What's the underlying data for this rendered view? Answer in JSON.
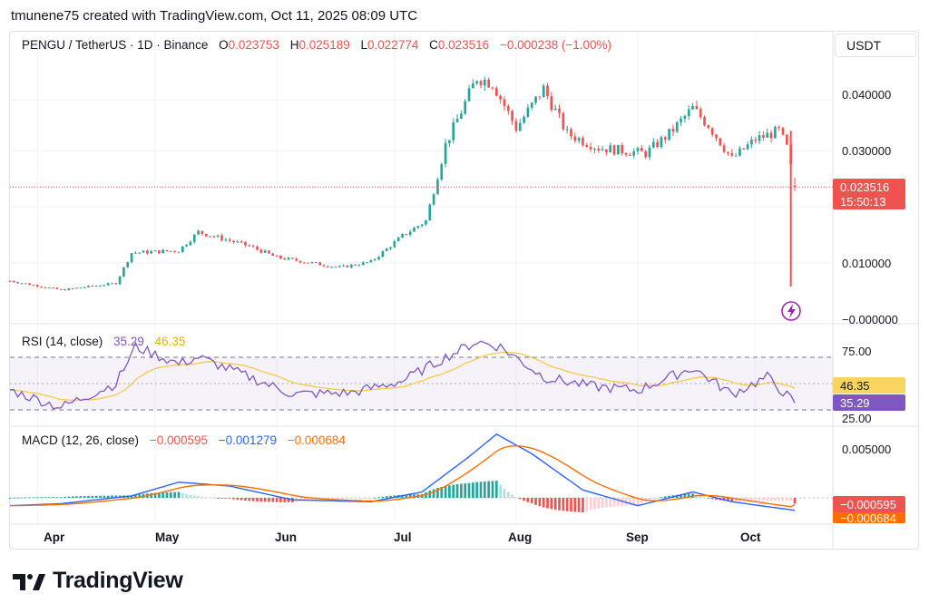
{
  "header": {
    "credit": "tmunene75 created with TradingView.com, Oct 11, 2025 08:09 UTC"
  },
  "symbol": {
    "name": "PENGU / TetherUS · 1D · Binance",
    "o_label": "O",
    "o_value": "0.023753",
    "h_label": "H",
    "h_value": "0.025189",
    "l_label": "L",
    "l_value": "0.022774",
    "c_label": "C",
    "c_value": "0.023516",
    "change": "−0.000238 (−1.00%)"
  },
  "price_axis": {
    "currency": "USDT",
    "ticks": [
      "0.040000",
      "0.030000",
      "0.010000",
      "−0.000000"
    ],
    "last_price": "0.023516",
    "countdown": "15:50:13"
  },
  "rsi": {
    "label": "RSI (14, close)",
    "value": "35.29",
    "ma_value": "46.35",
    "ticks": [
      "75.00",
      "25.00"
    ],
    "value_badge": "35.29",
    "ma_badge": "46.35"
  },
  "macd": {
    "label": "MACD (12, 26, close)",
    "hist": "−0.000595",
    "macd": "−0.001279",
    "signal": "−0.000684",
    "ticks": [
      "0.005000"
    ],
    "hist_badge": "−0.000595",
    "signal_badge": "−0.000684"
  },
  "time_axis": [
    "Apr",
    "May",
    "Jun",
    "Jul",
    "Aug",
    "Sep",
    "Oct"
  ],
  "footer": {
    "brand": "TradingView"
  },
  "colors": {
    "up": "#26a69a",
    "down": "#ef5350",
    "rsi": "#7e57c2",
    "rsi_ma": "#f7c948",
    "macd": "#2962ff",
    "signal": "#ff6d00",
    "grid": "#f0f3fa",
    "text": "#131722"
  },
  "chart_data": {
    "type": "candlestick",
    "title": "PENGU / TetherUS · 1D · Binance",
    "x_range": [
      "2025-03-25",
      "2025-10-11"
    ],
    "ylim": [
      0,
      0.045
    ],
    "close_trajectory": {
      "x": [
        "2025-03-25",
        "2025-04-07",
        "2025-04-21",
        "2025-04-25",
        "2025-05-07",
        "2025-05-12",
        "2025-05-25",
        "2025-06-01",
        "2025-06-17",
        "2025-06-25",
        "2025-07-03",
        "2025-07-09",
        "2025-07-14",
        "2025-07-17",
        "2025-07-22",
        "2025-07-26",
        "2025-08-01",
        "2025-08-08",
        "2025-08-14",
        "2025-08-22",
        "2025-09-03",
        "2025-09-09",
        "2025-09-15",
        "2025-09-19",
        "2025-09-25",
        "2025-10-01",
        "2025-10-07",
        "2025-10-09",
        "2025-10-11"
      ],
      "close": [
        0.0068,
        0.0052,
        0.0064,
        0.0118,
        0.0122,
        0.0155,
        0.013,
        0.011,
        0.0092,
        0.0102,
        0.0148,
        0.0175,
        0.031,
        0.0355,
        0.043,
        0.042,
        0.034,
        0.041,
        0.033,
        0.0305,
        0.0295,
        0.033,
        0.0375,
        0.0345,
        0.0285,
        0.032,
        0.0335,
        0.0305,
        0.023516
      ]
    },
    "last_day": {
      "open": 0.023753,
      "high": 0.025189,
      "low": 0.022774,
      "close": 0.023516
    },
    "flash_wick_low": 0.0058,
    "rsi": {
      "ylim": [
        0,
        100
      ],
      "levels": [
        30,
        70
      ],
      "x": [
        "2025-03-25",
        "2025-04-07",
        "2025-04-21",
        "2025-04-26",
        "2025-05-07",
        "2025-05-12",
        "2025-05-25",
        "2025-06-05",
        "2025-06-20",
        "2025-07-03",
        "2025-07-14",
        "2025-07-22",
        "2025-07-28",
        "2025-08-08",
        "2025-08-20",
        "2025-09-01",
        "2025-09-15",
        "2025-09-25",
        "2025-10-04",
        "2025-10-11"
      ],
      "rsi": [
        45,
        32,
        50,
        78,
        65,
        70,
        55,
        42,
        43,
        52,
        70,
        82,
        78,
        55,
        48,
        45,
        62,
        42,
        55,
        35.29
      ],
      "ma_last": 46.35
    },
    "macd": {
      "x": [
        "2025-03-25",
        "2025-04-07",
        "2025-04-25",
        "2025-05-07",
        "2025-05-20",
        "2025-06-05",
        "2025-06-25",
        "2025-07-08",
        "2025-07-20",
        "2025-07-27",
        "2025-08-05",
        "2025-08-18",
        "2025-09-01",
        "2025-09-15",
        "2025-09-25",
        "2025-10-11"
      ],
      "macd": [
        -0.0008,
        -0.0006,
        0.0002,
        0.0016,
        0.0012,
        -0.0002,
        -0.0004,
        0.0006,
        0.0042,
        0.0065,
        0.0045,
        0.0008,
        -0.0008,
        0.0006,
        -0.0004,
        -0.001279
      ],
      "signal_last": -0.000684,
      "hist_last": -0.000595
    }
  }
}
